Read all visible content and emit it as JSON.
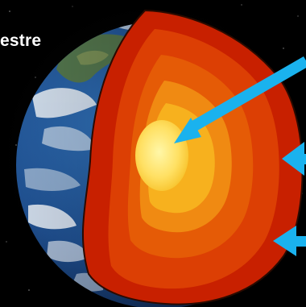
{
  "diagram": {
    "title_fragment": "estre",
    "colors": {
      "arrow": "#1ab2ee",
      "ocean": "#1f4f8f",
      "clouds": "#eef3f8",
      "crust_outer": "#c82000",
      "mantle_mid": "#e55b06",
      "mantle_inner": "#f08a12",
      "outer_core": "#f7b11e",
      "inner_core": "#ffe063"
    },
    "pointers": [
      {
        "target": "inner-core",
        "name": "arrow-to-inner-core"
      },
      {
        "target": "mantle",
        "name": "arrow-to-mantle"
      },
      {
        "target": "crust",
        "name": "arrow-to-crust"
      }
    ]
  }
}
